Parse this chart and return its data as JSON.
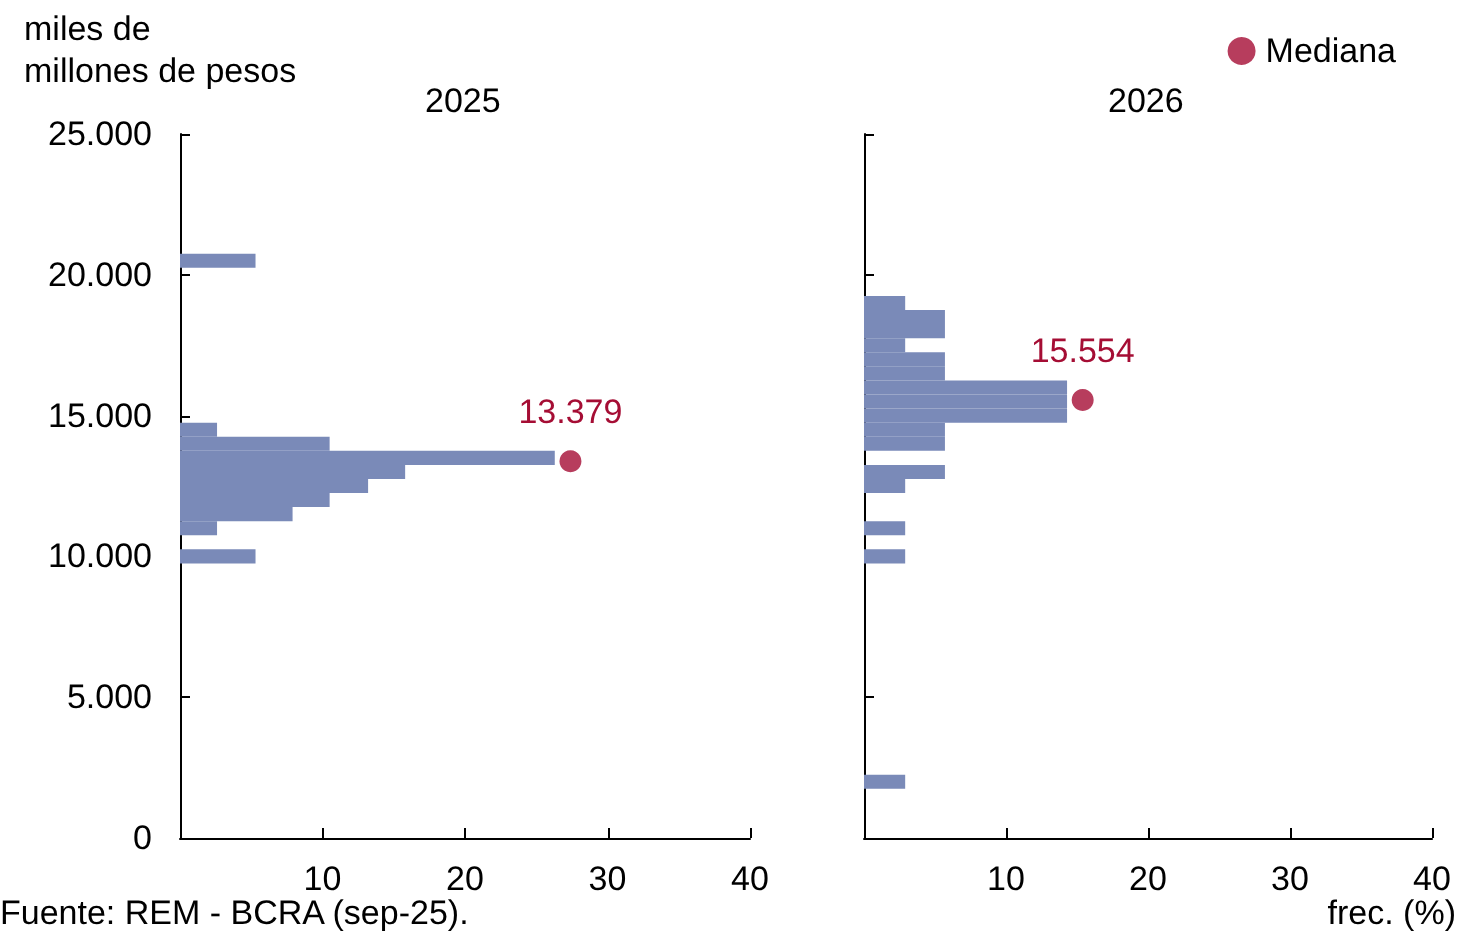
{
  "chart_data": [
    {
      "type": "histogram",
      "orientation": "horizontal",
      "title": "2025",
      "ylabel": "miles de\nmillones de pesos",
      "annotations": [
        "Fuente: REM - BCRA (sep-25).",
        {
          "text": "13.379",
          "x": 27.4,
          "y": 13379
        }
      ],
      "legend": false,
      "bins": [
        9750,
        10250,
        10750,
        11250,
        11750,
        12250,
        12750,
        13250,
        13750,
        14250,
        14750,
        15250,
        15750,
        16250,
        16750,
        17250,
        17750,
        18250,
        18750,
        19250,
        19750,
        20250,
        20750
      ],
      "series": [
        {
          "color": "#7a8ab8",
          "values": [
            5.3,
            0,
            2.6,
            7.9,
            10.5,
            13.2,
            15.8,
            26.3,
            10.5,
            2.6,
            0,
            0,
            0,
            0,
            0,
            0,
            0,
            0,
            0,
            0,
            0,
            5.3
          ]
        },
        {
          "type": "scatter",
          "color": "#a50d34",
          "x": [
            13379
          ],
          "values": [
            27.4
          ]
        }
      ],
      "xlim": [
        0,
        40
      ],
      "xticks": [
        10,
        20,
        30,
        40
      ],
      "ylim": [
        0,
        25000
      ],
      "yticks": [
        {
          "value": 0,
          "label": "0"
        },
        {
          "value": 5000,
          "label": "5.000"
        },
        {
          "value": 10000,
          "label": "10.000"
        },
        {
          "value": 15000,
          "label": "15.000"
        },
        {
          "value": 20000,
          "label": "20.000"
        },
        {
          "value": 25000,
          "label": "25.000"
        }
      ]
    },
    {
      "type": "histogram",
      "orientation": "horizontal",
      "title": "2026",
      "xlabel": "frec. (%)",
      "annotations": [
        {
          "text": "15.554",
          "x": 15.4,
          "y": 15554
        }
      ],
      "legend": "top right",
      "tick_labels": "x",
      "bins": [
        1750,
        2250,
        2750,
        3250,
        3750,
        4250,
        4750,
        5250,
        5750,
        6250,
        6750,
        7250,
        7750,
        8250,
        8750,
        9250,
        9750,
        10250,
        10750,
        11250,
        11750,
        12250,
        12750,
        13250,
        13750,
        14250,
        14750,
        15250,
        15750,
        16250,
        16750,
        17250,
        17750,
        18250,
        18750,
        19250
      ],
      "series": [
        {
          "color": "#7a8ab8",
          "values": [
            2.9,
            0,
            0,
            0,
            0,
            0,
            0,
            0,
            0,
            0,
            0,
            0,
            0,
            0,
            0,
            0,
            2.9,
            0,
            2.9,
            0,
            0,
            2.9,
            5.7,
            0,
            5.7,
            5.7,
            14.3,
            14.3,
            14.3,
            5.7,
            5.7,
            2.9,
            5.7,
            5.7,
            2.9
          ]
        },
        {
          "type": "scatter",
          "name": "Mediana",
          "color": "#a50d34",
          "x": [
            15554
          ],
          "values": [
            15.4
          ]
        }
      ],
      "xlim": [
        0,
        40
      ],
      "xticks": [
        10,
        20,
        30,
        40
      ],
      "ylim": [
        0,
        25000
      ],
      "yticks": [
        {
          "value": 0,
          "label": null
        },
        {
          "value": 5000,
          "label": null
        },
        {
          "value": 10000,
          "label": null
        },
        {
          "value": 15000,
          "label": null
        },
        {
          "value": 20000,
          "label": null
        },
        {
          "value": 25000,
          "label": null
        }
      ]
    }
  ]
}
